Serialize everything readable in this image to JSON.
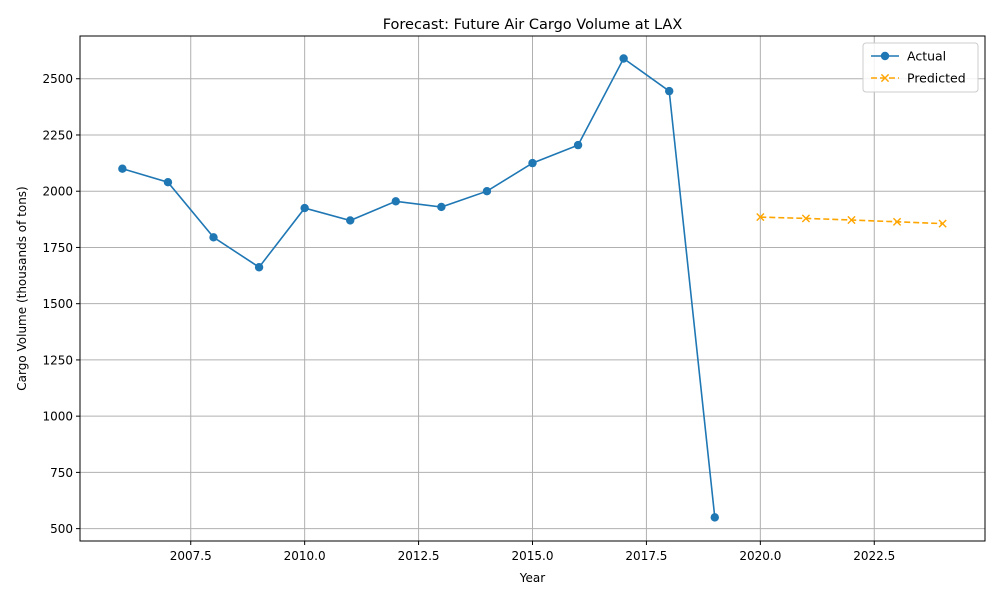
{
  "chart_data": {
    "type": "line",
    "title": "Forecast: Future Air Cargo Volume at LAX",
    "xlabel": "Year",
    "ylabel": "Cargo Volume (thousands of tons)",
    "xlim": [
      2005.07,
      2024.93
    ],
    "ylim": [
      445,
      2690
    ],
    "grid": true,
    "legend_position": "top-right",
    "x_ticks": [
      2007.5,
      2010.0,
      2012.5,
      2015.0,
      2017.5,
      2020.0,
      2022.5
    ],
    "x_tick_labels": [
      "2007.5",
      "2010.0",
      "2012.5",
      "2015.0",
      "2017.5",
      "2020.0",
      "2022.5"
    ],
    "y_ticks": [
      500,
      750,
      1000,
      1250,
      1500,
      1750,
      2000,
      2250,
      2500
    ],
    "y_tick_labels": [
      "500",
      "750",
      "1000",
      "1250",
      "1500",
      "1750",
      "2000",
      "2250",
      "2500"
    ],
    "series": [
      {
        "name": "Actual",
        "color": "#1f77b4",
        "marker": "circle",
        "line_style": "solid",
        "x": [
          2006,
          2007,
          2008,
          2009,
          2010,
          2011,
          2012,
          2013,
          2014,
          2015,
          2016,
          2017,
          2018,
          2019
        ],
        "values": [
          2100,
          2040,
          1795,
          1662,
          1925,
          1870,
          1955,
          1930,
          2000,
          2125,
          2205,
          2590,
          2445,
          550
        ]
      },
      {
        "name": "Predicted",
        "color": "#ffa500",
        "marker": "x",
        "line_style": "dashed",
        "x": [
          2020,
          2021,
          2022,
          2023,
          2024
        ],
        "values": [
          1885,
          1879,
          1872,
          1864,
          1856
        ]
      }
    ]
  }
}
